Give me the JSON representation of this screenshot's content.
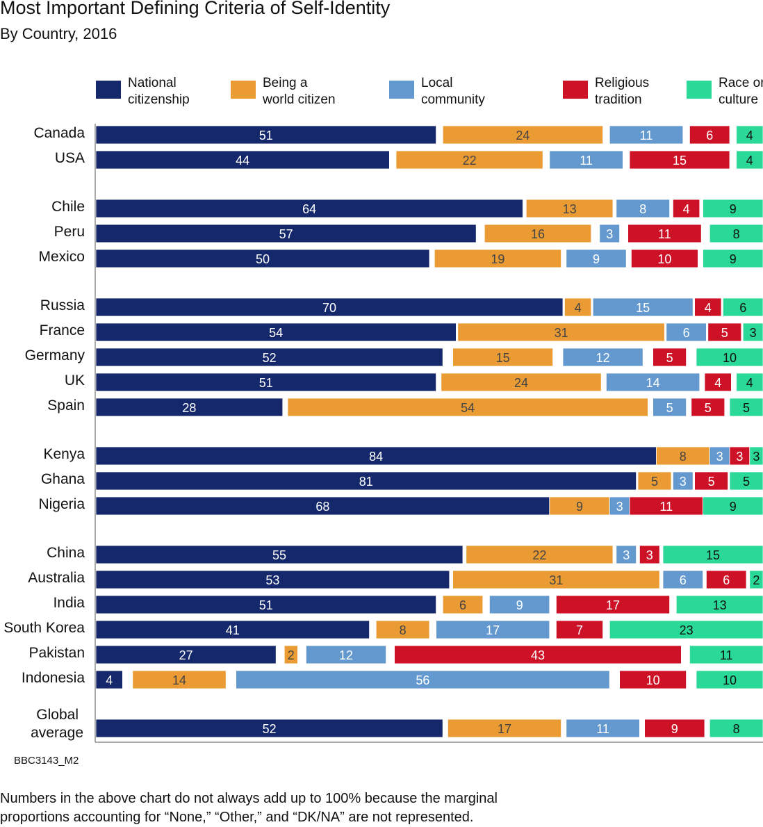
{
  "title": "Most Important Defining Criteria of Self-Identity",
  "subtitle": "By Country, 2016",
  "code": "BBC3143_M2",
  "note": "Numbers in the above chart do not always add up to 100% because the marginal proportions accounting for “None,” “Other,” and “DK/NA” are not represented.",
  "chart_data": {
    "type": "bar",
    "orientation": "horizontal",
    "stacked": true,
    "legend_placement": "top",
    "series": [
      {
        "name": "National citizenship",
        "color": "#14286b",
        "text_color": "#ffffff"
      },
      {
        "name": "Being a world citizen",
        "color": "#ea9b34",
        "text_color": "#444444"
      },
      {
        "name": "Local community",
        "color": "#6399ce",
        "text_color": "#ffffff"
      },
      {
        "name": "Religious tradition",
        "color": "#cd1126",
        "text_color": "#ffffff"
      },
      {
        "name": "Race or culture",
        "color": "#2ad897",
        "text_color": "#111111"
      }
    ],
    "groups": [
      [
        [
          "Canada",
          [
            51,
            24,
            11,
            6,
            4
          ]
        ],
        [
          "USA",
          [
            44,
            22,
            11,
            15,
            4
          ]
        ]
      ],
      [
        [
          "Chile",
          [
            64,
            13,
            8,
            4,
            9
          ]
        ],
        [
          "Peru",
          [
            57,
            16,
            3,
            11,
            8
          ]
        ],
        [
          "Mexico",
          [
            50,
            19,
            9,
            10,
            9
          ]
        ]
      ],
      [
        [
          "Russia",
          [
            70,
            4,
            15,
            4,
            6
          ]
        ],
        [
          "France",
          [
            54,
            31,
            6,
            5,
            3
          ]
        ],
        [
          "Germany",
          [
            52,
            15,
            12,
            5,
            10
          ]
        ],
        [
          "UK",
          [
            51,
            24,
            14,
            4,
            4
          ]
        ],
        [
          "Spain",
          [
            28,
            54,
            5,
            5,
            5
          ]
        ]
      ],
      [
        [
          "Kenya",
          [
            84,
            8,
            3,
            3,
            3
          ]
        ],
        [
          "Ghana",
          [
            81,
            5,
            3,
            5,
            5
          ]
        ],
        [
          "Nigeria",
          [
            68,
            9,
            3,
            11,
            9
          ]
        ]
      ],
      [
        [
          "China",
          [
            55,
            22,
            3,
            3,
            15
          ]
        ],
        [
          "Australia",
          [
            53,
            31,
            6,
            6,
            2
          ]
        ],
        [
          "India",
          [
            51,
            6,
            9,
            17,
            13
          ]
        ],
        [
          "South Korea",
          [
            41,
            8,
            17,
            7,
            23
          ]
        ],
        [
          "Pakistan",
          [
            27,
            2,
            12,
            43,
            11
          ]
        ],
        [
          "Indonesia",
          [
            4,
            14,
            56,
            10,
            10
          ]
        ]
      ],
      [
        [
          "Global average",
          [
            52,
            17,
            11,
            9,
            8
          ]
        ]
      ]
    ]
  }
}
